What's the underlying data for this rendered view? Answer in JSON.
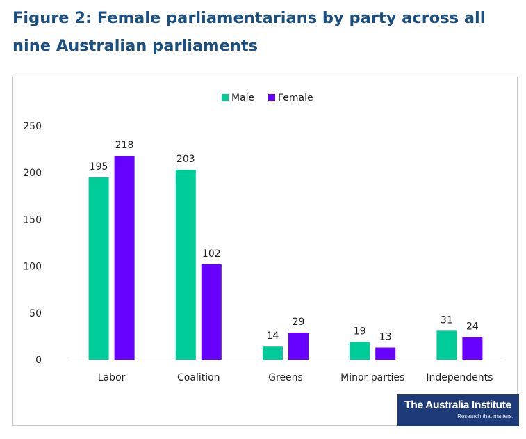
{
  "figure": {
    "title": "Figure 2: Female parliamentarians by party across all nine Australian parliaments"
  },
  "logo": {
    "name": "The Australia Institute",
    "tagline": "Research that matters."
  },
  "colors": {
    "male": "#00cc99",
    "female": "#6600ff",
    "title": "#1a4f82",
    "logo_bg": "#1e3a78"
  },
  "chart_data": {
    "type": "bar",
    "categories": [
      "Labor",
      "Coalition",
      "Greens",
      "Minor parties",
      "Independents"
    ],
    "series": [
      {
        "name": "Male",
        "values": [
          195,
          203,
          14,
          19,
          31
        ],
        "color": "#00cc99"
      },
      {
        "name": "Female",
        "values": [
          218,
          102,
          29,
          13,
          24
        ],
        "color": "#6600ff"
      }
    ],
    "yticks": [
      "0",
      "50",
      "100",
      "150",
      "200",
      "250"
    ],
    "ylim": [
      0,
      250
    ],
    "grid": false,
    "legend": "top-center"
  }
}
